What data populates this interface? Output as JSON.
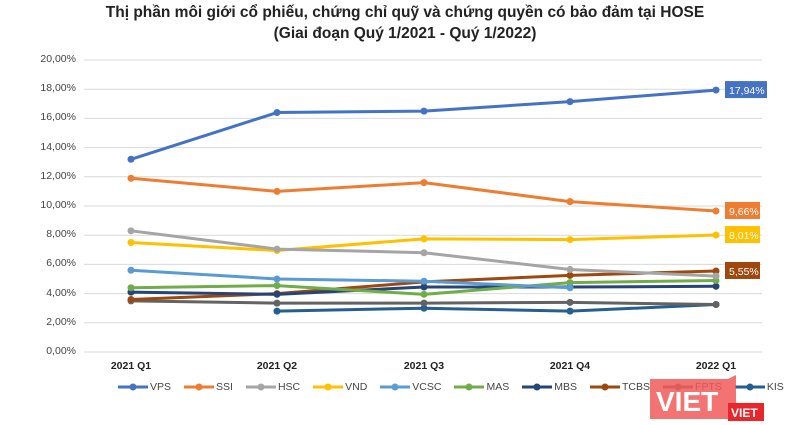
{
  "chart_data": {
    "type": "line",
    "title": "Thị phần môi giới cổ phiếu, chứng chỉ quỹ và chứng quyền có bảo đảm tại HOSE",
    "subtitle": "(Giai đoạn Quý 1/2021 - Quý 1/2022)",
    "xlabel": "",
    "ylabel": "",
    "ylim": [
      0,
      20
    ],
    "y_ticks": [
      "0,00%",
      "2,00%",
      "4,00%",
      "6,00%",
      "8,00%",
      "10,00%",
      "12,00%",
      "14,00%",
      "16,00%",
      "18,00%",
      "20,00%"
    ],
    "categories": [
      "2021 Q1",
      "2021 Q2",
      "2021 Q3",
      "2021 Q4",
      "2022 Q1"
    ],
    "grid": true,
    "legend_position": "bottom",
    "series": [
      {
        "name": "VPS",
        "color": "#4472C4",
        "values": [
          13.2,
          16.4,
          16.5,
          17.15,
          17.94
        ]
      },
      {
        "name": "SSI",
        "color": "#ED7D31",
        "values": [
          11.9,
          11.0,
          11.6,
          10.3,
          9.66
        ]
      },
      {
        "name": "HSC",
        "color": "#A5A5A5",
        "values": [
          8.3,
          7.05,
          6.8,
          5.65,
          5.2
        ]
      },
      {
        "name": "VND",
        "color": "#FFC000",
        "values": [
          7.5,
          6.95,
          7.75,
          7.7,
          8.01
        ]
      },
      {
        "name": "VCSC",
        "color": "#5B9BD5",
        "values": [
          5.6,
          5.0,
          4.85,
          4.4,
          null
        ]
      },
      {
        "name": "MAS",
        "color": "#70AD47",
        "values": [
          4.4,
          4.55,
          3.95,
          4.75,
          4.9
        ]
      },
      {
        "name": "MBS",
        "color": "#264478",
        "values": [
          4.1,
          3.95,
          4.45,
          4.45,
          4.5
        ]
      },
      {
        "name": "TCBS",
        "color": "#9E480E",
        "values": [
          3.6,
          4.0,
          4.8,
          5.25,
          5.55
        ]
      },
      {
        "name": "FPTS",
        "color": "#636363",
        "values": [
          3.5,
          3.35,
          3.35,
          3.4,
          3.25
        ]
      },
      {
        "name": "KIS",
        "color": "#255E91",
        "values": [
          null,
          2.8,
          3.0,
          2.8,
          3.25
        ]
      }
    ],
    "annotations": [
      {
        "series": "VPS",
        "category": "2022 Q1",
        "label": "17,94%"
      },
      {
        "series": "SSI",
        "category": "2022 Q1",
        "label": "9,66%"
      },
      {
        "series": "VND",
        "category": "2022 Q1",
        "label": "8,01%"
      },
      {
        "series": "TCBS",
        "category": "2022 Q1",
        "label": "5,55%"
      }
    ]
  },
  "watermark": {
    "text": "VIET",
    "color": "#F15A5A"
  }
}
